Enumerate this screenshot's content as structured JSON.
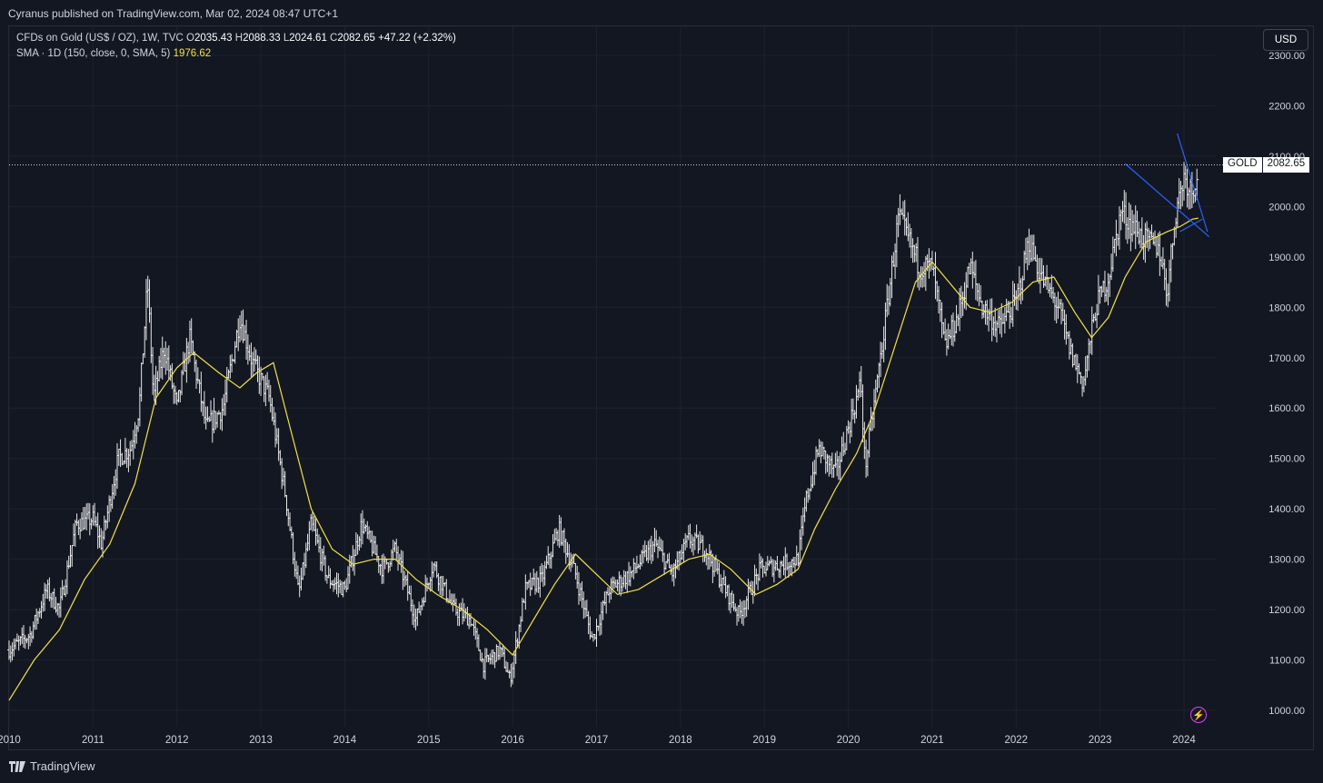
{
  "header": {
    "published": "Cyranus published on TradingView.com, Mar 02, 2024 08:47 UTC+1"
  },
  "legend": {
    "symbol": "CFDs on Gold (US$ / OZ), 1W, TVC",
    "open_label": "O",
    "open": "2035.43",
    "high_label": "H",
    "high": "2088.33",
    "low_label": "L",
    "low": "2024.61",
    "close_label": "C",
    "close": "2082.65",
    "change": "+47.22 (+2.32%)",
    "sma_label": "SMA · 1D (150, close, 0, SMA, 5)",
    "sma_value": "1976.62"
  },
  "currency_button": "USD",
  "price_badge": {
    "symbol": "GOLD",
    "value": "2082.65"
  },
  "footer": {
    "brand": "TradingView"
  },
  "colors": {
    "background": "#131722",
    "grid": "#1e222d",
    "bars": "#e8e8e8",
    "sma": "#f5e146",
    "trendline": "#2962ff",
    "axis_text": "#d1d4dc",
    "alert": "#e040fb"
  },
  "icons": {
    "alert": "lightning-bolt-icon",
    "logo": "tradingview-logo-icon"
  },
  "chart_data": {
    "type": "ohlc",
    "interval": "1W",
    "y_axis": {
      "min": 1000,
      "max": 2300,
      "ticks": [
        2300,
        2200,
        2100,
        2000,
        1900,
        1800,
        1700,
        1600,
        1500,
        1400,
        1300,
        1200,
        1100,
        1000
      ],
      "tick_labels": [
        "2300.00",
        "2200.00",
        "2100.00",
        "2000.00",
        "1900.00",
        "1800.00",
        "1700.00",
        "1600.00",
        "1500.00",
        "1400.00",
        "1300.00",
        "1200.00",
        "1100.00",
        "1000.00"
      ]
    },
    "x_axis": {
      "min": 2010.0,
      "max": 2024.45,
      "ticks": [
        2010,
        2011,
        2012,
        2013,
        2014,
        2015,
        2016,
        2017,
        2018,
        2019,
        2020,
        2021,
        2022,
        2023,
        2024
      ],
      "tick_labels": [
        "2010",
        "2011",
        "2012",
        "2013",
        "2014",
        "2015",
        "2016",
        "2017",
        "2018",
        "2019",
        "2020",
        "2021",
        "2022",
        "2023",
        "2024"
      ]
    },
    "current_price": 2082.65,
    "price_path": [
      [
        2010.0,
        1120
      ],
      [
        2010.25,
        1150
      ],
      [
        2010.45,
        1240
      ],
      [
        2010.6,
        1200
      ],
      [
        2010.8,
        1370
      ],
      [
        2011.0,
        1380
      ],
      [
        2011.1,
        1330
      ],
      [
        2011.3,
        1500
      ],
      [
        2011.45,
        1520
      ],
      [
        2011.55,
        1600
      ],
      [
        2011.65,
        1850
      ],
      [
        2011.72,
        1620
      ],
      [
        2011.85,
        1720
      ],
      [
        2012.0,
        1600
      ],
      [
        2012.15,
        1740
      ],
      [
        2012.35,
        1560
      ],
      [
        2012.55,
        1600
      ],
      [
        2012.75,
        1780
      ],
      [
        2012.9,
        1690
      ],
      [
        2013.1,
        1620
      ],
      [
        2013.3,
        1420
      ],
      [
        2013.45,
        1230
      ],
      [
        2013.6,
        1370
      ],
      [
        2013.8,
        1260
      ],
      [
        2014.0,
        1240
      ],
      [
        2014.2,
        1370
      ],
      [
        2014.45,
        1280
      ],
      [
        2014.6,
        1320
      ],
      [
        2014.85,
        1180
      ],
      [
        2015.05,
        1290
      ],
      [
        2015.3,
        1200
      ],
      [
        2015.5,
        1180
      ],
      [
        2015.65,
        1090
      ],
      [
        2015.85,
        1120
      ],
      [
        2015.97,
        1060
      ],
      [
        2016.15,
        1240
      ],
      [
        2016.35,
        1260
      ],
      [
        2016.55,
        1360
      ],
      [
        2016.75,
        1270
      ],
      [
        2016.95,
        1140
      ],
      [
        2017.15,
        1240
      ],
      [
        2017.4,
        1270
      ],
      [
        2017.7,
        1330
      ],
      [
        2017.9,
        1270
      ],
      [
        2018.1,
        1340
      ],
      [
        2018.3,
        1320
      ],
      [
        2018.5,
        1250
      ],
      [
        2018.7,
        1190
      ],
      [
        2018.95,
        1280
      ],
      [
        2019.2,
        1290
      ],
      [
        2019.4,
        1300
      ],
      [
        2019.5,
        1420
      ],
      [
        2019.65,
        1520
      ],
      [
        2019.85,
        1470
      ],
      [
        2020.0,
        1560
      ],
      [
        2020.15,
        1650
      ],
      [
        2020.2,
        1480
      ],
      [
        2020.4,
        1720
      ],
      [
        2020.6,
        1980
      ],
      [
        2020.7,
        1940
      ],
      [
        2020.85,
        1880
      ],
      [
        2021.0,
        1880
      ],
      [
        2021.15,
        1720
      ],
      [
        2021.3,
        1780
      ],
      [
        2021.45,
        1880
      ],
      [
        2021.6,
        1800
      ],
      [
        2021.8,
        1760
      ],
      [
        2022.0,
        1810
      ],
      [
        2022.15,
        1930
      ],
      [
        2022.3,
        1860
      ],
      [
        2022.5,
        1800
      ],
      [
        2022.65,
        1710
      ],
      [
        2022.8,
        1650
      ],
      [
        2022.95,
        1800
      ],
      [
        2023.1,
        1860
      ],
      [
        2023.25,
        1990
      ],
      [
        2023.4,
        1960
      ],
      [
        2023.55,
        1930
      ],
      [
        2023.7,
        1920
      ],
      [
        2023.8,
        1830
      ],
      [
        2023.9,
        1990
      ],
      [
        2024.0,
        2060
      ],
      [
        2024.1,
        2030
      ],
      [
        2024.17,
        2082
      ]
    ],
    "sma_path": [
      [
        2010.0,
        1020
      ],
      [
        2010.3,
        1100
      ],
      [
        2010.6,
        1160
      ],
      [
        2010.9,
        1260
      ],
      [
        2011.2,
        1330
      ],
      [
        2011.5,
        1450
      ],
      [
        2011.75,
        1620
      ],
      [
        2012.0,
        1680
      ],
      [
        2012.2,
        1710
      ],
      [
        2012.5,
        1670
      ],
      [
        2012.75,
        1640
      ],
      [
        2012.95,
        1670
      ],
      [
        2013.15,
        1690
      ],
      [
        2013.35,
        1560
      ],
      [
        2013.6,
        1400
      ],
      [
        2013.85,
        1320
      ],
      [
        2014.1,
        1290
      ],
      [
        2014.35,
        1300
      ],
      [
        2014.6,
        1300
      ],
      [
        2014.85,
        1260
      ],
      [
        2015.1,
        1230
      ],
      [
        2015.4,
        1200
      ],
      [
        2015.7,
        1160
      ],
      [
        2016.0,
        1110
      ],
      [
        2016.25,
        1180
      ],
      [
        2016.5,
        1250
      ],
      [
        2016.75,
        1310
      ],
      [
        2017.0,
        1270
      ],
      [
        2017.25,
        1230
      ],
      [
        2017.5,
        1240
      ],
      [
        2017.8,
        1270
      ],
      [
        2018.1,
        1300
      ],
      [
        2018.35,
        1310
      ],
      [
        2018.6,
        1280
      ],
      [
        2018.9,
        1230
      ],
      [
        2019.15,
        1250
      ],
      [
        2019.4,
        1280
      ],
      [
        2019.6,
        1360
      ],
      [
        2019.85,
        1440
      ],
      [
        2020.1,
        1510
      ],
      [
        2020.3,
        1590
      ],
      [
        2020.55,
        1720
      ],
      [
        2020.8,
        1850
      ],
      [
        2021.0,
        1890
      ],
      [
        2021.2,
        1850
      ],
      [
        2021.45,
        1800
      ],
      [
        2021.7,
        1790
      ],
      [
        2021.95,
        1810
      ],
      [
        2022.2,
        1850
      ],
      [
        2022.45,
        1860
      ],
      [
        2022.7,
        1790
      ],
      [
        2022.9,
        1740
      ],
      [
        2023.1,
        1780
      ],
      [
        2023.3,
        1860
      ],
      [
        2023.55,
        1930
      ],
      [
        2023.8,
        1950
      ],
      [
        2023.95,
        1960
      ],
      [
        2024.1,
        1975
      ],
      [
        2024.17,
        1977
      ]
    ],
    "trendlines": [
      {
        "from": [
          2023.3,
          2085
        ],
        "to": [
          2024.3,
          1940
        ]
      },
      {
        "from": [
          2023.92,
          2145
        ],
        "to": [
          2024.28,
          1950
        ]
      },
      {
        "from": [
          2023.95,
          1950
        ],
        "to": [
          2024.22,
          1975
        ]
      }
    ]
  }
}
